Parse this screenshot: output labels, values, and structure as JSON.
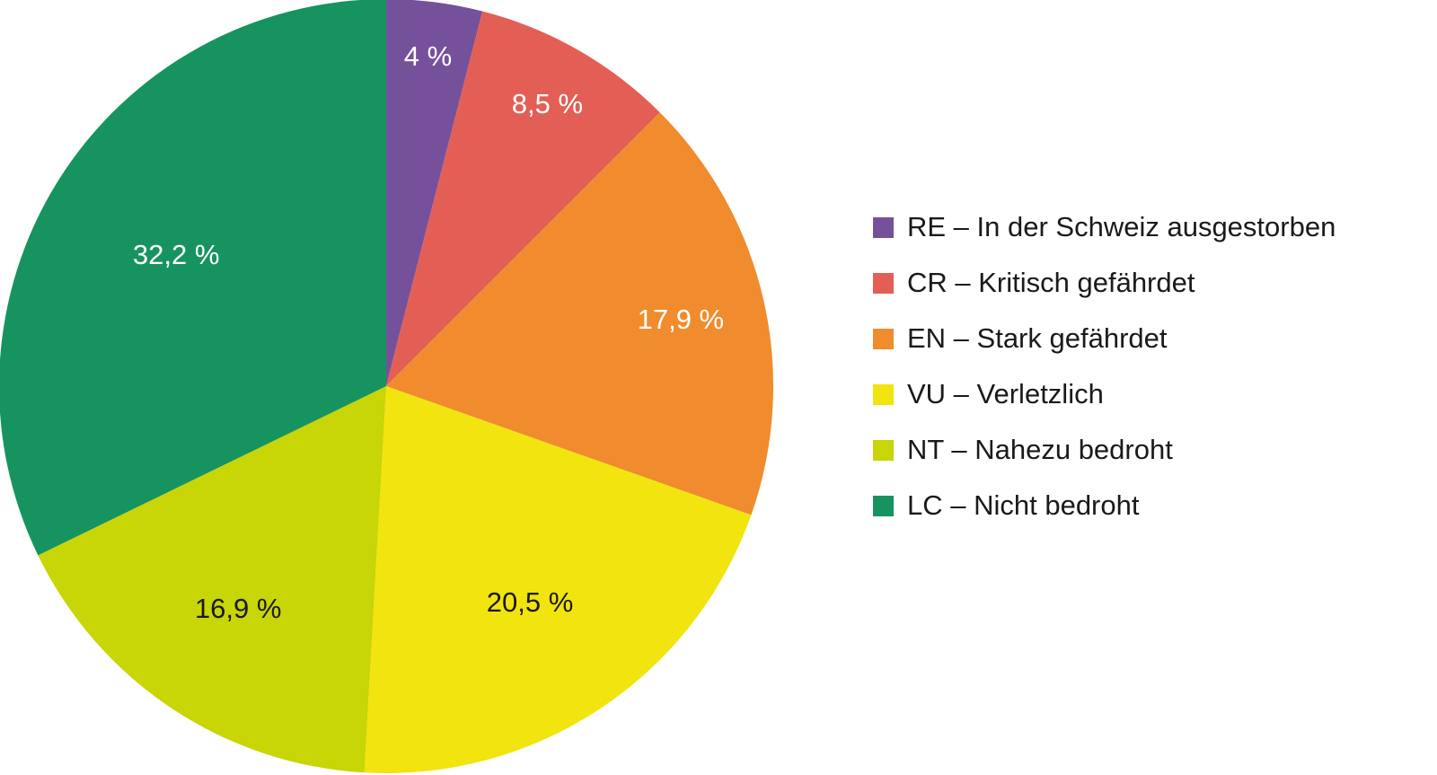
{
  "chart_data": {
    "type": "pie",
    "title": "",
    "start_angle_deg": 0,
    "direction": "clockwise",
    "slices": [
      {
        "code": "RE",
        "label": "RE – In der Schweiz ausgestorben",
        "value": 4,
        "value_label": "4 %",
        "color": "#76519b",
        "label_color": "#ffffff"
      },
      {
        "code": "CR",
        "label": "CR – Kritisch gefährdet",
        "value": 8.5,
        "value_label": "8,5 %",
        "color": "#e35f55",
        "label_color": "#ffffff"
      },
      {
        "code": "EN",
        "label": "EN – Stark gefährdet",
        "value": 17.9,
        "value_label": "17,9 %",
        "color": "#f08c2d",
        "label_color": "#ffffff"
      },
      {
        "code": "VU",
        "label": "VU – Verletzlich",
        "value": 20.5,
        "value_label": "20,5 %",
        "color": "#f2e40f",
        "label_color": "#1a1a1a"
      },
      {
        "code": "NT",
        "label": "NT – Nahezu bedroht",
        "value": 16.9,
        "value_label": "16,9 %",
        "color": "#c8d507",
        "label_color": "#1a1a1a"
      },
      {
        "code": "LC",
        "label": "LC – Nicht bedroht",
        "value": 32.2,
        "value_label": "32,2 %",
        "color": "#179360",
        "label_color": "#ffffff"
      }
    ],
    "legend": {
      "placement": "right"
    }
  }
}
